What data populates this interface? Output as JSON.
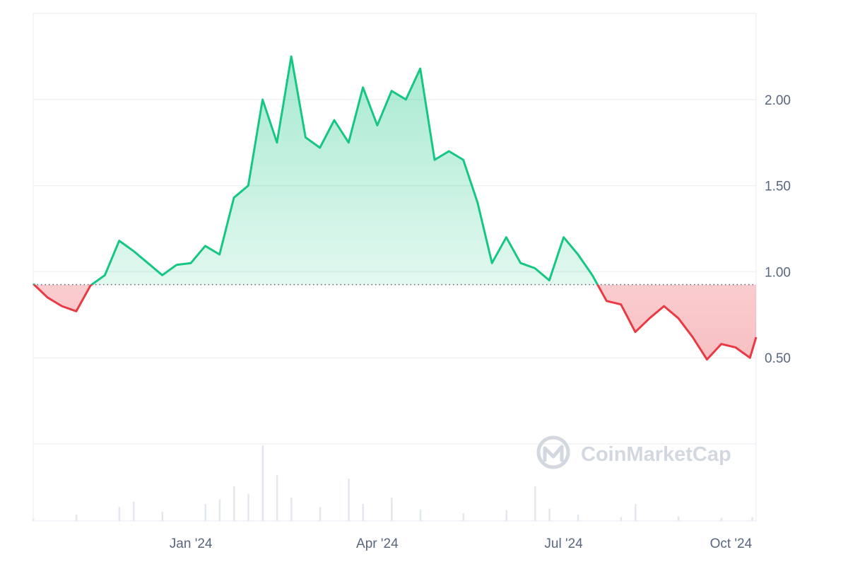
{
  "chart_data": {
    "type": "area",
    "title": "",
    "baseline": 0.925,
    "ylim": [
      0.0,
      2.5
    ],
    "y_ticks": [
      "0.50",
      "1.00",
      "1.50",
      "2.00"
    ],
    "x_ticks": [
      "Jan '24",
      "Apr '24",
      "Jul '24",
      "Oct '24"
    ],
    "x_range": [
      "2023-10-16",
      "2024-10-03"
    ],
    "colors": {
      "up": "#16c784",
      "down": "#ea3943",
      "grid": "#eff2f5",
      "baseline": "#58667e"
    },
    "series": [
      {
        "x": [
          "2023-10-16",
          "2023-10-23",
          "2023-10-30",
          "2023-11-06",
          "2023-11-13",
          "2023-11-20",
          "2023-11-27",
          "2023-12-04",
          "2023-12-11",
          "2023-12-18",
          "2023-12-25",
          "2024-01-01",
          "2024-01-08",
          "2024-01-15",
          "2024-01-22",
          "2024-01-29",
          "2024-02-05",
          "2024-02-12",
          "2024-02-19",
          "2024-02-26",
          "2024-03-04",
          "2024-03-11",
          "2024-03-18",
          "2024-03-25",
          "2024-04-01",
          "2024-04-08",
          "2024-04-15",
          "2024-04-22",
          "2024-04-29",
          "2024-05-06",
          "2024-05-13",
          "2024-05-20",
          "2024-05-27",
          "2024-06-03",
          "2024-06-10",
          "2024-06-17",
          "2024-06-24",
          "2024-07-01",
          "2024-07-08",
          "2024-07-15",
          "2024-07-22",
          "2024-07-29",
          "2024-08-05",
          "2024-08-12",
          "2024-08-19",
          "2024-08-26",
          "2024-09-02",
          "2024-09-09",
          "2024-09-16",
          "2024-09-23",
          "2024-09-30",
          "2024-10-03"
        ],
        "values": [
          0.93,
          0.85,
          0.8,
          0.77,
          0.92,
          0.98,
          1.18,
          1.12,
          1.05,
          0.98,
          1.04,
          1.05,
          1.15,
          1.1,
          1.43,
          1.5,
          2.0,
          1.75,
          2.25,
          1.78,
          1.72,
          1.88,
          1.75,
          2.07,
          1.85,
          2.05,
          2.0,
          2.18,
          1.65,
          1.7,
          1.65,
          1.4,
          1.05,
          1.2,
          1.05,
          1.02,
          0.95,
          1.2,
          1.1,
          0.98,
          0.83,
          0.81,
          0.65,
          0.73,
          0.8,
          0.73,
          0.62,
          0.49,
          0.58,
          0.56,
          0.5,
          0.62
        ]
      }
    ],
    "volume": {
      "x": [
        "2023-10-16",
        "2023-11-06",
        "2023-11-27",
        "2023-12-04",
        "2023-12-18",
        "2024-01-08",
        "2024-01-15",
        "2024-01-22",
        "2024-01-29",
        "2024-02-05",
        "2024-02-12",
        "2024-02-19",
        "2024-03-04",
        "2024-03-18",
        "2024-03-25",
        "2024-04-08",
        "2024-04-22",
        "2024-05-13",
        "2024-06-03",
        "2024-06-17",
        "2024-06-24",
        "2024-07-08",
        "2024-07-29",
        "2024-08-05",
        "2024-08-26",
        "2024-09-16",
        "2024-10-01"
      ],
      "values": [
        0.03,
        0.08,
        0.18,
        0.25,
        0.12,
        0.22,
        0.28,
        0.45,
        0.35,
        0.98,
        0.6,
        0.3,
        0.18,
        0.55,
        0.22,
        0.3,
        0.15,
        0.1,
        0.14,
        0.45,
        0.16,
        0.08,
        0.05,
        0.22,
        0.06,
        0.04,
        0.05
      ]
    },
    "watermark": "CoinMarketCap"
  }
}
